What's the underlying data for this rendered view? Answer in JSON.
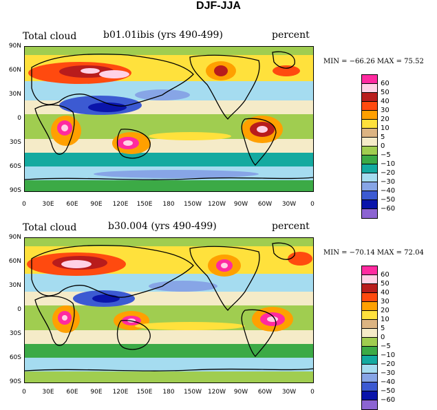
{
  "title": "DJF-JJA",
  "panels": [
    {
      "left_label": "Total cloud",
      "center_label": "b01.01ibis (yrs 490-499)",
      "right_label": "percent",
      "min_max": "MIN = −66.26 MAX =  75.52"
    },
    {
      "left_label": "Total cloud",
      "center_label": "b30.004 (yrs 490-499)",
      "right_label": "percent",
      "min_max": "MIN = −70.14 MAX =  72.04"
    }
  ],
  "lat_labels": [
    "90N",
    "60N",
    "30N",
    "0",
    "30S",
    "60S",
    "90S"
  ],
  "lon_labels": [
    "0",
    "30E",
    "60E",
    "90E",
    "120E",
    "150E",
    "180",
    "150W",
    "120W",
    "90W",
    "60W",
    "30W",
    "0"
  ],
  "colorbar": {
    "labels": [
      "60",
      "50",
      "40",
      "30",
      "20",
      "10",
      "5",
      "0",
      "−5",
      "−10",
      "−20",
      "−30",
      "−40",
      "−50",
      "−60"
    ],
    "colors": [
      "#ff2aa0",
      "#ffd2e6",
      "#b81c1c",
      "#ff4a0f",
      "#ffa000",
      "#ffe13c",
      "#dcb482",
      "#f5ebc8",
      "#a0cd50",
      "#3caa46",
      "#14aaa0",
      "#a5dcf0",
      "#87a5e6",
      "#3c5ad2",
      "#0a14aa",
      "#8c64d2"
    ]
  },
  "chart_data": {
    "type": "map",
    "title": "DJF-JJA",
    "variable": "Total cloud",
    "units": "percent",
    "panels": [
      {
        "case": "b01.01ibis (yrs 490-499)",
        "min": -66.26,
        "max": 75.52
      },
      {
        "case": "b30.004 (yrs 490-499)",
        "min": -70.14,
        "max": 72.04
      }
    ],
    "contour_levels": [
      -60,
      -50,
      -40,
      -30,
      -20,
      -10,
      -5,
      0,
      5,
      10,
      20,
      30,
      40,
      50,
      60
    ],
    "lat_range": [
      -90,
      90
    ],
    "lon_range": [
      0,
      360
    ]
  }
}
